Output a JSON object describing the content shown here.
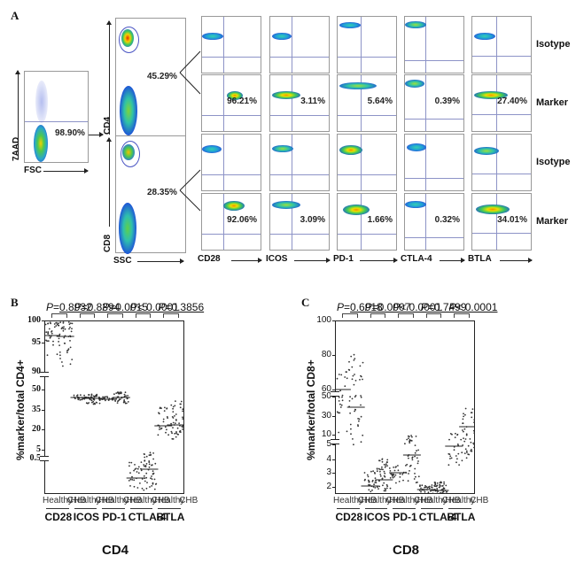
{
  "panel_a": {
    "letter": "A",
    "gate": {
      "x_label": "FSC",
      "y_label": "7AAD",
      "percent": "98.90%"
    },
    "ssc_panels": {
      "x_label": "SSC",
      "top": {
        "y_label": "CD4",
        "percent": "45.29%"
      },
      "bottom": {
        "y_label": "CD8",
        "percent": "28.35%"
      }
    },
    "markers": [
      "CD28",
      "ICOS",
      "PD-1",
      "CTLA-4",
      "BTLA"
    ],
    "row_labels": [
      "Isotype",
      "Marker",
      "Isotype",
      "Marker"
    ],
    "cd4_marker_percents": [
      "96.21%",
      "3.11%",
      "5.64%",
      "0.39%",
      "27.40%"
    ],
    "cd8_marker_percents": [
      "92.06%",
      "3.09%",
      "1.66%",
      "0.32%",
      "34.01%"
    ]
  },
  "panel_b": {
    "letter": "B",
    "title": "CD4",
    "ylabel": "%marker/total CD4+",
    "p_values": [
      "P=0.8932",
      "P=0.8394",
      "P=0.0015",
      "P< 0.0001",
      "P=0.3856"
    ],
    "y_ticks_top": [
      "100",
      "95",
      "90"
    ],
    "y_ticks_mid": [
      "50",
      "35",
      "20",
      "5"
    ],
    "y_ticks_low": [
      "0.5",
      "0.4",
      "0.3",
      "0.2",
      "0.1",
      "0.0"
    ],
    "groups": [
      "Healthy",
      "CHB"
    ],
    "markers": [
      "CD28",
      "ICOS",
      "PD-1",
      "CTLA-4",
      "BTLA"
    ]
  },
  "panel_c": {
    "letter": "C",
    "title": "CD8",
    "ylabel": "%marker/total CD8+",
    "p_values": [
      "P=0.6918",
      "P=0.0007",
      "P< 0.0001",
      "P=0.7499",
      "P< 0.0001"
    ],
    "y_ticks_top": [
      "100",
      "80",
      "60"
    ],
    "y_ticks_mid": [
      "50",
      "30",
      "10"
    ],
    "y_ticks_low": [
      "5",
      "4",
      "3",
      "2",
      "1",
      "0"
    ],
    "groups": [
      "Healthy",
      "CHB"
    ],
    "markers": [
      "CD28",
      "ICOS",
      "PD-1",
      "CTLA-4",
      "BTLA"
    ]
  },
  "chart_data": [
    {
      "type": "scatter",
      "title": "CD4",
      "xlabel": "",
      "ylabel": "%marker/total CD4+",
      "categories": [
        "CD28 Healthy",
        "CD28 CHB",
        "ICOS Healthy",
        "ICOS CHB",
        "PD-1 Healthy",
        "PD-1 CHB",
        "CTLA-4 Healthy",
        "CTLA-4 CHB",
        "BTLA Healthy",
        "BTLA CHB"
      ],
      "medians": [
        97.8,
        97.9,
        4.8,
        4.3,
        3.8,
        4.5,
        0.07,
        0.16,
        18,
        20
      ],
      "p_values": {
        "CD28": "0.8932",
        "ICOS": "0.8394",
        "PD-1": "0.0015",
        "CTLA-4": "<0.0001",
        "BTLA": "0.3856"
      },
      "y_axis_segments": [
        [
          90,
          100
        ],
        [
          5,
          50
        ],
        [
          0.0,
          0.5
        ]
      ]
    },
    {
      "type": "scatter",
      "title": "CD8",
      "xlabel": "",
      "ylabel": "%marker/total CD8+",
      "categories": [
        "CD28 Healthy",
        "CD28 CHB",
        "ICOS Healthy",
        "ICOS CHB",
        "PD-1 Healthy",
        "PD-1 CHB",
        "CTLA-4 Healthy",
        "CTLA-4 CHB",
        "BTLA Healthy",
        "BTLA CHB"
      ],
      "medians": [
        60,
        55,
        0.5,
        1.0,
        2.2,
        3.8,
        0.2,
        0.2,
        4.4,
        12
      ],
      "p_values": {
        "CD28": "0.6918",
        "ICOS": "0.0007",
        "PD-1": "<0.0001",
        "CTLA-4": "0.7499",
        "BTLA": "<0.0001"
      },
      "y_axis_segments": [
        [
          60,
          100
        ],
        [
          10,
          50
        ],
        [
          0,
          5
        ]
      ]
    }
  ]
}
